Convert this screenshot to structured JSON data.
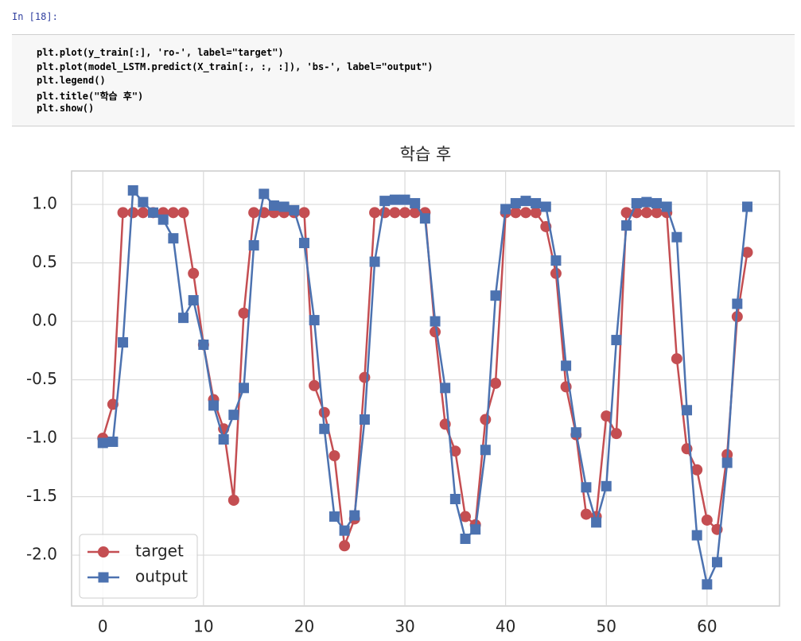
{
  "cell": {
    "prompt": "In [18]:",
    "code": [
      "plt.plot(y_train[:], 'ro-', label=\"target\")",
      "plt.plot(model_LSTM.predict(X_train[:, :, :]), 'bs-', label=\"output\")",
      "plt.legend()",
      "plt.title(\"학습 후\")",
      "plt.show()"
    ]
  },
  "chart_data": {
    "type": "line",
    "title": "학습 후",
    "x": [
      0,
      1,
      2,
      3,
      4,
      5,
      6,
      7,
      8,
      9,
      10,
      11,
      12,
      13,
      14,
      15,
      16,
      17,
      18,
      19,
      20,
      21,
      22,
      23,
      24,
      25,
      26,
      27,
      28,
      29,
      30,
      31,
      32,
      33,
      34,
      35,
      36,
      37,
      38,
      39,
      40,
      41,
      42,
      43,
      44,
      45,
      46,
      47,
      48,
      49,
      50,
      51,
      52,
      53,
      54,
      55,
      56,
      57,
      58,
      59,
      60,
      61,
      62,
      63,
      64
    ],
    "series": [
      {
        "name": "target",
        "color": "#c44e52",
        "marker": "circle",
        "values": [
          -1.0,
          -0.71,
          0.93,
          0.93,
          0.93,
          0.93,
          0.93,
          0.93,
          0.93,
          0.41,
          -0.2,
          -0.67,
          -0.92,
          -1.53,
          0.07,
          0.93,
          0.93,
          0.93,
          0.93,
          0.93,
          0.93,
          -0.55,
          -0.78,
          -1.15,
          -1.92,
          -1.69,
          -0.48,
          0.93,
          0.93,
          0.93,
          0.93,
          0.93,
          0.93,
          -0.09,
          -0.88,
          -1.11,
          -1.67,
          -1.74,
          -0.84,
          -0.53,
          0.93,
          0.93,
          0.93,
          0.93,
          0.81,
          0.41,
          -0.56,
          -0.97,
          -1.65,
          -1.67,
          -0.81,
          -0.96,
          0.93,
          0.93,
          0.93,
          0.93,
          0.93,
          -0.32,
          -1.09,
          -1.27,
          -1.7,
          -1.78,
          -1.14,
          0.04,
          0.59
        ]
      },
      {
        "name": "output",
        "color": "#4c72b0",
        "marker": "square",
        "values": [
          -1.04,
          -1.03,
          -0.18,
          1.12,
          1.02,
          0.93,
          0.87,
          0.71,
          0.03,
          0.18,
          -0.2,
          -0.72,
          -1.01,
          -0.8,
          -0.57,
          0.65,
          1.09,
          0.99,
          0.98,
          0.95,
          0.67,
          0.01,
          -0.92,
          -1.67,
          -1.79,
          -1.66,
          -0.84,
          0.51,
          1.03,
          1.04,
          1.04,
          1.01,
          0.88,
          0.0,
          -0.57,
          -1.52,
          -1.86,
          -1.78,
          -1.1,
          0.22,
          0.96,
          1.01,
          1.03,
          1.01,
          0.98,
          0.52,
          -0.38,
          -0.95,
          -1.42,
          -1.72,
          -1.41,
          -0.16,
          0.82,
          1.01,
          1.02,
          1.01,
          0.98,
          0.72,
          -0.76,
          -1.83,
          -2.25,
          -2.06,
          -1.21,
          0.15,
          0.98
        ]
      }
    ],
    "xlim": [
      -3.1,
      67.2
    ],
    "ylim": [
      -2.435,
      1.286
    ],
    "xticks": [
      0,
      10,
      20,
      30,
      40,
      50,
      60
    ],
    "yticks": [
      {
        "value": -2.0,
        "label": "-2.0"
      },
      {
        "value": -1.5,
        "label": "-1.5"
      },
      {
        "value": -1.0,
        "label": "-1.0"
      },
      {
        "value": -0.5,
        "label": "-0.5"
      },
      {
        "value": 0.0,
        "label": "0.0"
      },
      {
        "value": 0.5,
        "label": "0.5"
      },
      {
        "value": 1.0,
        "label": "1.0"
      }
    ],
    "grid": true,
    "legend": "lower left"
  }
}
